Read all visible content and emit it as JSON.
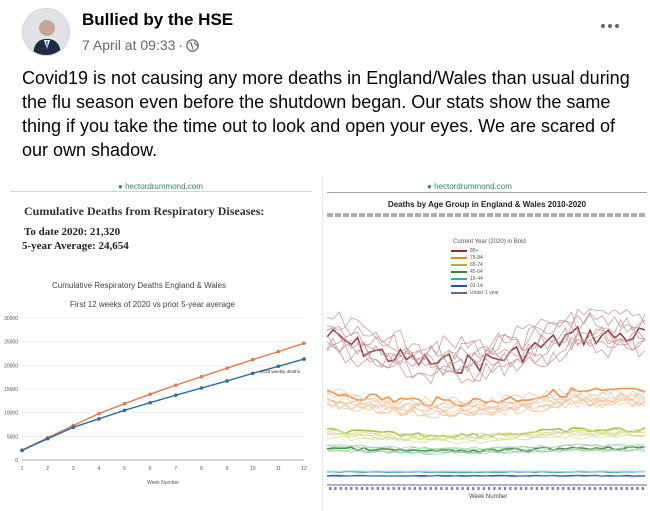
{
  "post": {
    "author": "Bullied by the HSE",
    "timestamp": "7 April at 09:33",
    "separator": "·",
    "audience_icon": "globe-icon",
    "more_icon": "more-options-icon",
    "text": "Covid19 is not causing any more deaths in England/Wales than usual during the flu season even before the shutdown began. Our stats show the same thing if you take the time out to look and open your eyes. We are scared of our own shadow."
  },
  "left_image": {
    "watermark": "hectordrummond.com",
    "title": "Cumulative Deaths from Respiratory Diseases:",
    "stat_to_date": "To date 2020: 21,320",
    "stat_average": "5-year Average: 24,654",
    "chart_title": "Cumulative Respiratory Deaths England & Wales",
    "chart_subtitle": "First 12 weeks of 2020 vs prior 5-year average"
  },
  "right_image": {
    "watermark": "hectordrummond.com",
    "title": "Deaths by Age Group in England & Wales 2010-2020",
    "legend_title": "Current Year (2020) in Bold",
    "legend": [
      "85+",
      "75-84",
      "65-74",
      "45-64",
      "15-44",
      "01-14",
      "Under 1 year"
    ],
    "xlabel": "Week Number"
  },
  "chart_data": [
    {
      "type": "line",
      "title": "Cumulative Respiratory Deaths England & Wales",
      "subtitle": "First 12 weeks of 2020 vs prior 5-year average",
      "xlabel": "Week Number",
      "ylabel": "",
      "x": [
        1,
        2,
        3,
        4,
        5,
        6,
        7,
        8,
        9,
        10,
        11,
        12
      ],
      "ylim": [
        0,
        30000
      ],
      "yticks": [
        0,
        5000,
        10000,
        15000,
        20000,
        25000,
        30000
      ],
      "series": [
        {
          "name": "5-year average",
          "color": "#e07b4f",
          "values": [
            2100,
            4700,
            7300,
            9800,
            11900,
            13900,
            15800,
            17600,
            19400,
            21200,
            22900,
            24654
          ]
        },
        {
          "name": "2020 weekly deaths",
          "color": "#2e6b9e",
          "values": [
            2000,
            4500,
            6900,
            8700,
            10500,
            12100,
            13700,
            15200,
            16700,
            18300,
            19800,
            21320
          ]
        }
      ],
      "annotation": "2020 weekly deaths"
    },
    {
      "type": "line",
      "title": "Deaths by Age Group in England & Wales 2010-2020",
      "xlabel": "Week Number",
      "series": [
        {
          "name": "85+",
          "color": "#8b2c2c"
        },
        {
          "name": "75-84",
          "color": "#e8833a"
        },
        {
          "name": "65-74",
          "color": "#a8b834"
        },
        {
          "name": "45-64",
          "color": "#2f8a3c"
        },
        {
          "name": "15-44",
          "color": "#3aa6a6"
        },
        {
          "name": "01-14",
          "color": "#2c4f9e"
        },
        {
          "name": "Under 1 year",
          "color": "#6b5fa8"
        }
      ]
    }
  ]
}
